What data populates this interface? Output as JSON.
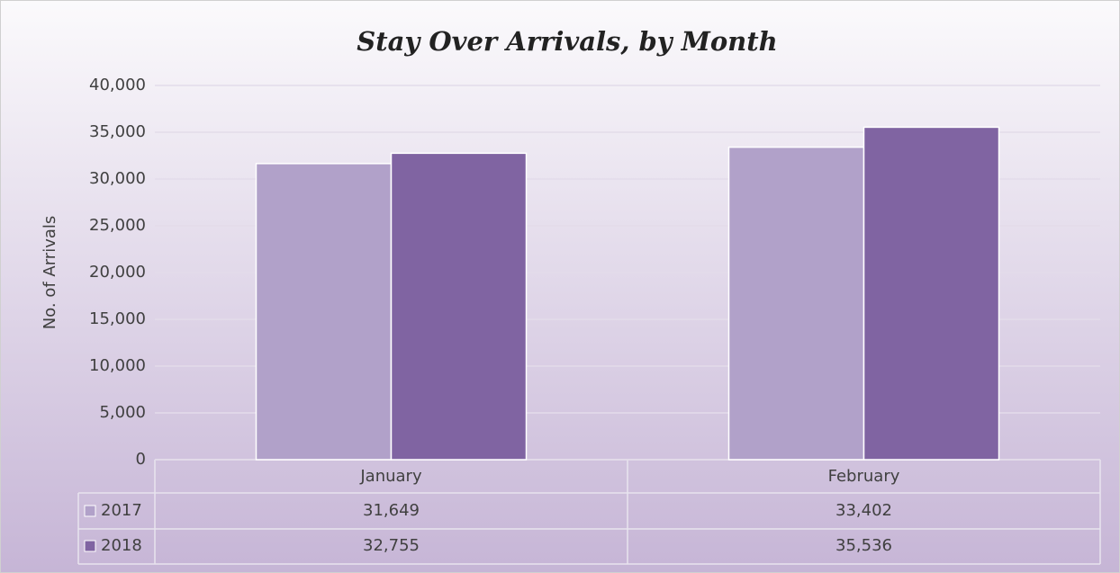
{
  "chart_data": {
    "type": "bar",
    "title": "Stay Over Arrivals, by Month",
    "y_label": "No. of Arrivals",
    "categories": [
      "January",
      "February"
    ],
    "series": [
      {
        "name": "2017",
        "color": "#b1a1c9",
        "values": [
          31649,
          33402
        ],
        "value_labels": [
          "31,649",
          "33,402"
        ]
      },
      {
        "name": "2018",
        "color": "#8064a2",
        "values": [
          32755,
          35536
        ],
        "value_labels": [
          "32,755",
          "35,536"
        ]
      }
    ],
    "ylim": [
      0,
      40000
    ],
    "yticks": [
      0,
      {
        "value": 5000,
        "label": "5,000"
      },
      {
        "value": 10000,
        "label": "10,000"
      },
      {
        "value": 15000,
        "label": "15,000"
      },
      {
        "value": 20000,
        "label": "20,000"
      },
      {
        "value": 25000,
        "label": "25,000"
      },
      {
        "value": 30000,
        "label": "30,000"
      },
      {
        "value": 35000,
        "label": "35,000"
      },
      {
        "value": 40000,
        "label": "40,000"
      }
    ],
    "grid": true
  }
}
